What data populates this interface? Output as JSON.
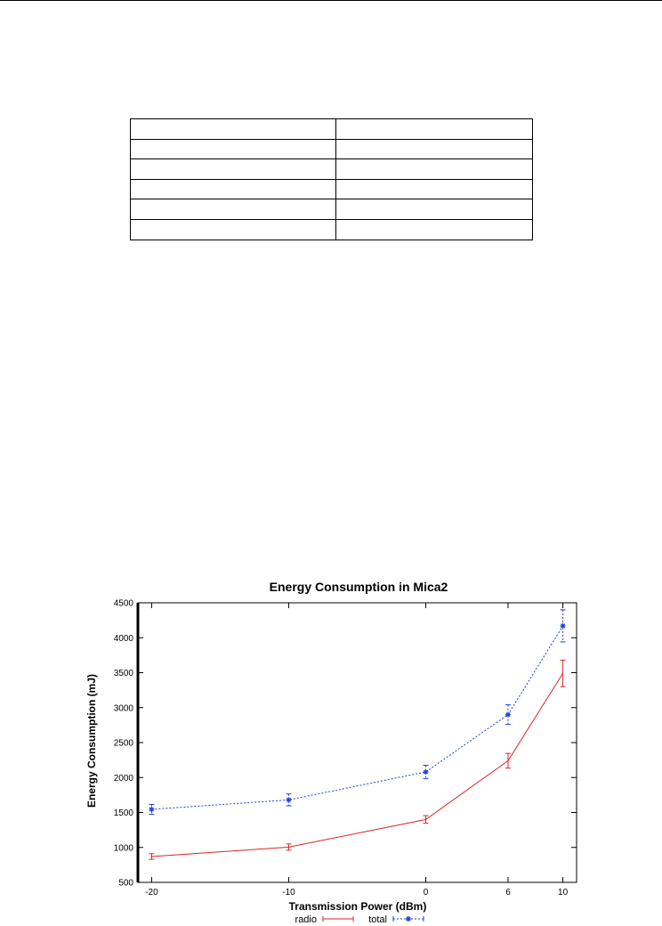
{
  "table": {
    "rows": [
      [
        "",
        ""
      ],
      [
        "",
        ""
      ],
      [
        "",
        ""
      ],
      [
        "",
        ""
      ],
      [
        "",
        ""
      ],
      [
        "",
        ""
      ]
    ]
  },
  "chart_data": {
    "type": "line",
    "title": "Energy Consumption in Mica2",
    "xlabel": "Transmission Power (dBm)",
    "ylabel": "Energy Consumption (mJ)",
    "x": [
      "-20",
      "-10",
      "0",
      "6",
      "10"
    ],
    "x_values": [
      -20,
      -10,
      0,
      6,
      10
    ],
    "xlim": [
      -21,
      11
    ],
    "ylim": [
      500,
      4500
    ],
    "yticks": [
      500,
      1000,
      1500,
      2000,
      2500,
      3000,
      3500,
      4000,
      4500
    ],
    "grid": false,
    "legend_position": "bottom-center",
    "series": [
      {
        "name": "radio",
        "color": "#d62728",
        "style": "solid",
        "marker": "error-bar",
        "values": [
          870,
          1005,
          1400,
          2240,
          3490
        ],
        "errors": [
          40,
          45,
          55,
          105,
          190
        ]
      },
      {
        "name": "total",
        "color": "#1f3fd6",
        "style": "dotted",
        "marker": "star",
        "values": [
          1545,
          1680,
          2080,
          2900,
          4170
        ],
        "errors": [
          70,
          85,
          95,
          140,
          230
        ]
      }
    ]
  }
}
